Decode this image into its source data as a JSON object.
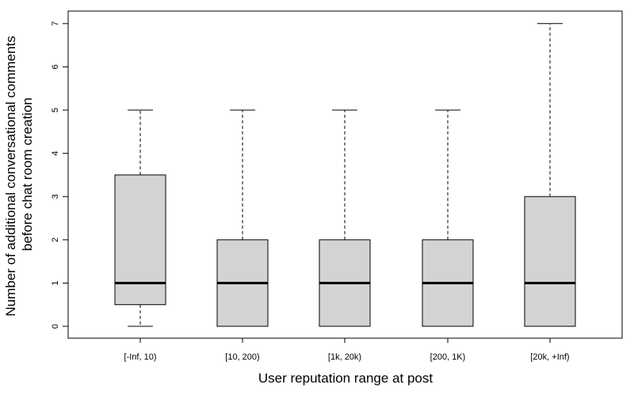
{
  "chart_data": {
    "type": "box",
    "categories": [
      "[-Inf, 10)",
      "[10, 200)",
      "[1k, 20k)",
      "[200, 1K)",
      "[20k, +Inf)"
    ],
    "series": [
      {
        "boxes": [
          {
            "min": 0,
            "q1": 0.5,
            "median": 1,
            "q3": 3.5,
            "max": 5
          },
          {
            "min": 0,
            "q1": 0,
            "median": 1,
            "q3": 2,
            "max": 5
          },
          {
            "min": 0,
            "q1": 0,
            "median": 1,
            "q3": 2,
            "max": 5
          },
          {
            "min": 0,
            "q1": 0,
            "median": 1,
            "q3": 2,
            "max": 5
          },
          {
            "min": 0,
            "q1": 0,
            "median": 1,
            "q3": 3,
            "max": 7
          }
        ]
      }
    ],
    "title": "",
    "xlabel": "User reputation range at post",
    "ylabel": [
      "Number of additional conversational comments",
      "before chat room creation"
    ],
    "ylim": [
      0,
      7
    ],
    "yticks": [
      "0",
      "1",
      "2",
      "3",
      "4",
      "5",
      "6",
      "7"
    ],
    "grid": false,
    "legend": "none",
    "colors": {
      "box_fill": "#d3d3d3",
      "stroke": "#000000"
    }
  }
}
